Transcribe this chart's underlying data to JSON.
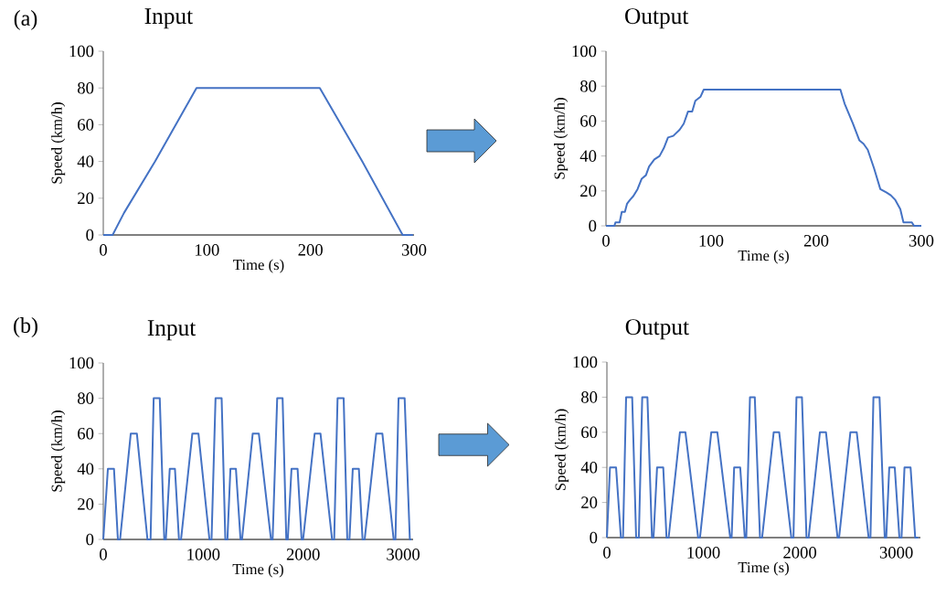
{
  "chart_data": [
    {
      "type": "line",
      "title": "Input",
      "xlabel": "Time (s)",
      "ylabel": "Speed (km/h)",
      "annotations": [
        "(a)"
      ],
      "color": "#4472c4",
      "xlim": [
        0,
        300
      ],
      "ylim": [
        0,
        100
      ],
      "xticks": [
        0,
        100,
        200,
        300
      ],
      "yticks": [
        0,
        20,
        40,
        60,
        80,
        100
      ],
      "x": [
        0,
        9,
        20,
        50,
        90,
        209,
        250,
        289,
        299
      ],
      "values": [
        0,
        0,
        12,
        40,
        80,
        80,
        40,
        0,
        0
      ]
    },
    {
      "type": "line",
      "title": "Output",
      "xlabel": "Time (s)",
      "ylabel": "Speed (km/h)",
      "color": "#4472c4",
      "xlim": [
        0,
        300
      ],
      "ylim": [
        0,
        100
      ],
      "xticks": [
        0,
        100,
        200,
        300
      ],
      "yticks": [
        0,
        20,
        40,
        60,
        80,
        100
      ],
      "x": [
        0,
        8,
        9,
        13,
        15,
        18,
        20,
        23,
        26,
        30,
        34,
        38,
        41,
        46,
        51,
        55,
        59,
        64,
        70,
        74,
        78,
        82,
        85,
        90,
        93,
        223,
        227,
        235,
        241,
        245,
        249,
        255,
        261,
        267,
        271,
        275,
        280,
        283,
        291,
        293,
        300
      ],
      "values": [
        0,
        0,
        2,
        2,
        8,
        8,
        12.6,
        15,
        17,
        21,
        27,
        29,
        34,
        38,
        40,
        44.5,
        50.6,
        51.5,
        55,
        58.5,
        65.4,
        65.4,
        71.6,
        74,
        78,
        78,
        70,
        58.5,
        49,
        47,
        43.6,
        33,
        21,
        19,
        17.5,
        15,
        9.6,
        2,
        2,
        0,
        0
      ]
    },
    {
      "type": "line",
      "title": "Input",
      "xlabel": "Time (s)",
      "ylabel": "Speed (km/h)",
      "annotations": [
        "(b)"
      ],
      "color": "#4472c4",
      "xlim": [
        0,
        3100
      ],
      "ylim": [
        0,
        100
      ],
      "xticks": [
        0,
        1000,
        2000,
        3000
      ],
      "yticks": [
        0,
        20,
        40,
        60,
        80,
        100
      ],
      "x": [
        0,
        46,
        107,
        146,
        168,
        275,
        336,
        442,
        473,
        504,
        565,
        610,
        626,
        665,
        717,
        757,
        778,
        891,
        952,
        1062,
        1083,
        1123,
        1184,
        1221,
        1242,
        1272,
        1327,
        1373,
        1388,
        1495,
        1556,
        1678,
        1694,
        1740,
        1794,
        1831,
        1846,
        1883,
        1944,
        1984,
        1999,
        2115,
        2173,
        2289,
        2310,
        2344,
        2405,
        2441,
        2463,
        2496,
        2557,
        2594,
        2615,
        2731,
        2792,
        2905,
        2923,
        2954,
        3015,
        3067,
        3082
      ],
      "values": [
        0,
        40,
        40,
        0,
        0,
        60,
        60,
        0,
        0,
        80,
        80,
        0,
        0,
        40,
        40,
        0,
        0,
        60,
        60,
        0,
        0,
        80,
        80,
        0,
        0,
        40,
        40,
        0,
        0,
        60,
        60,
        0,
        0,
        80,
        80,
        0,
        0,
        40,
        40,
        0,
        0,
        60,
        60,
        0,
        0,
        80,
        80,
        0,
        0,
        40,
        40,
        0,
        0,
        60,
        60,
        0,
        0,
        80,
        80,
        0,
        0
      ]
    },
    {
      "type": "line",
      "title": "Output",
      "xlabel": "Time (s)",
      "ylabel": "Speed (km/h)",
      "color": "#4472c4",
      "xlim": [
        0,
        3250
      ],
      "ylim": [
        0,
        100
      ],
      "xticks": [
        0,
        1000,
        2000,
        3000
      ],
      "yticks": [
        0,
        20,
        40,
        60,
        80,
        100
      ],
      "x": [
        0,
        32,
        95,
        145,
        167,
        199,
        262,
        303,
        331,
        366,
        420,
        467,
        483,
        520,
        584,
        618,
        640,
        757,
        814,
        946,
        965,
        1082,
        1145,
        1278,
        1293,
        1319,
        1382,
        1429,
        1445,
        1483,
        1533,
        1587,
        1609,
        1729,
        1786,
        1912,
        1934,
        1965,
        2022,
        2069,
        2091,
        2208,
        2271,
        2391,
        2407,
        2524,
        2590,
        2713,
        2732,
        2763,
        2826,
        2880,
        2896,
        2927,
        2984,
        3032,
        3054,
        3085,
        3148,
        3196,
        3227
      ],
      "values": [
        0,
        40,
        40,
        0,
        0,
        80,
        80,
        0,
        0,
        80,
        80,
        0,
        0,
        40,
        40,
        0,
        0,
        60,
        60,
        0,
        0,
        60,
        60,
        0,
        0,
        40,
        40,
        0,
        0,
        80,
        80,
        0,
        0,
        60,
        60,
        0,
        0,
        80,
        80,
        0,
        0,
        60,
        60,
        0,
        0,
        60,
        60,
        0,
        0,
        80,
        80,
        0,
        0,
        40,
        40,
        0,
        0,
        40,
        40,
        0,
        0
      ]
    }
  ]
}
